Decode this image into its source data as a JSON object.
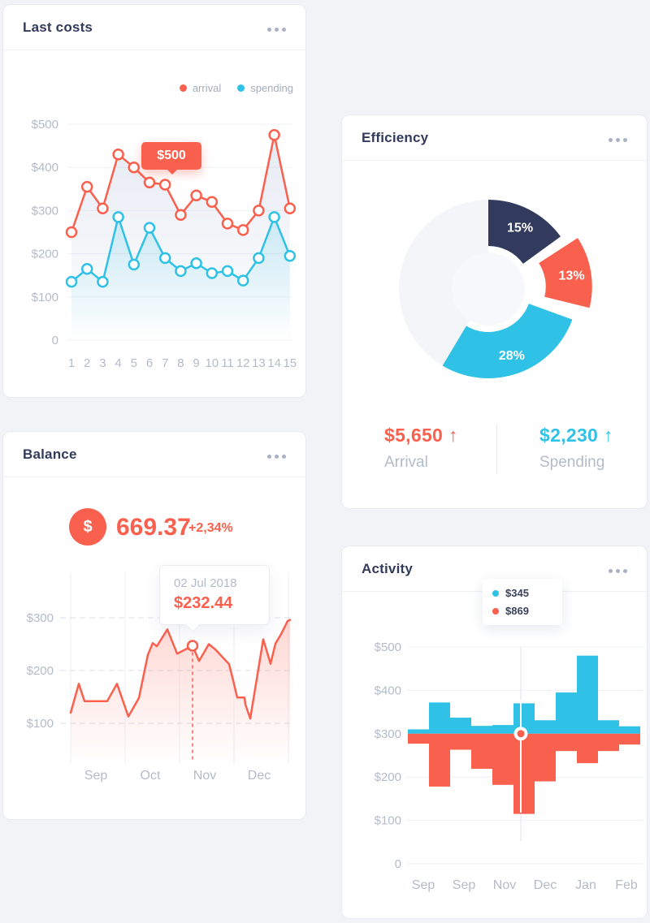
{
  "colors": {
    "page_bg": "#f1f3f7",
    "accent_red": "#f9604e",
    "accent_cyan": "#30c1e6",
    "navy": "#323b5e",
    "title_text": "#333b5d",
    "gray_text": "#b4bbc8",
    "donut_remainder": "#f4f5f9"
  },
  "icons": {
    "more_menu": "ellipsis",
    "up_arrow": "↑",
    "dollar_badge": "$"
  },
  "cards": {
    "last_costs": {
      "title": "Last costs"
    },
    "efficiency": {
      "title": "Efficiency"
    },
    "balance": {
      "title": "Balance"
    },
    "activity": {
      "title": "Activity"
    }
  },
  "chart_data": [
    {
      "id": "last-costs",
      "type": "line",
      "categories": [
        "1",
        "2",
        "3",
        "4",
        "5",
        "6",
        "7",
        "8",
        "9",
        "10",
        "11",
        "12",
        "13",
        "14",
        "15"
      ],
      "series": [
        {
          "name": "arrival",
          "color": "#f9604e",
          "values": [
            250,
            355,
            305,
            430,
            400,
            365,
            360,
            290,
            335,
            320,
            270,
            255,
            300,
            475,
            305
          ]
        },
        {
          "name": "spending",
          "color": "#30c1e6",
          "values": [
            135,
            165,
            135,
            285,
            175,
            260,
            190,
            160,
            178,
            155,
            160,
            138,
            190,
            285,
            195
          ]
        }
      ],
      "ylim": [
        0,
        500
      ],
      "y_tick_labels": [
        "$500",
        "$400",
        "$300",
        "$200",
        "$100",
        "0"
      ],
      "grid": true,
      "legend_position": "top-right",
      "tooltip": {
        "label": "$500"
      }
    },
    {
      "id": "efficiency",
      "type": "pie",
      "donut": true,
      "segments": [
        {
          "label": "15%",
          "pct": 15,
          "color": "#323b5e",
          "exploded": false
        },
        {
          "label": "13%",
          "pct": 13,
          "color": "#f9604e",
          "exploded": true
        },
        {
          "label": "28%",
          "pct": 28,
          "color": "#30c1e6",
          "exploded": false
        }
      ],
      "remainder_color": "#f4f5f9",
      "stats": [
        {
          "value": "$5,650",
          "arrow": "↑",
          "label": "Arrival",
          "color": "#f9604e"
        },
        {
          "value": "$2,230",
          "arrow": "↑",
          "label": "Spending",
          "color": "#30c1e6"
        }
      ]
    },
    {
      "id": "balance",
      "type": "area",
      "header": {
        "badge": "$",
        "value": "669.37",
        "change": "+2,34%"
      },
      "line_color": "#f9604e",
      "x_tick_labels": [
        "Sep",
        "Oct",
        "Nov",
        "Dec"
      ],
      "y_tick_labels": [
        "$300",
        "$200",
        "$100"
      ],
      "ylim": [
        100,
        300
      ],
      "points": [
        [
          0,
          120
        ],
        [
          10,
          175
        ],
        [
          17,
          142
        ],
        [
          45,
          142
        ],
        [
          57,
          175
        ],
        [
          71,
          113
        ],
        [
          84,
          148
        ],
        [
          95,
          230
        ],
        [
          101,
          252
        ],
        [
          106,
          246
        ],
        [
          119,
          278
        ],
        [
          131,
          232
        ],
        [
          150,
          247
        ],
        [
          158,
          218
        ],
        [
          170,
          250
        ],
        [
          178,
          240
        ],
        [
          195,
          212
        ],
        [
          200,
          181
        ],
        [
          205,
          149
        ],
        [
          214,
          149
        ],
        [
          215,
          136
        ],
        [
          221,
          109
        ],
        [
          237,
          259
        ],
        [
          246,
          213
        ],
        [
          252,
          251
        ],
        [
          259,
          269
        ],
        [
          267,
          294
        ],
        [
          270,
          296
        ]
      ],
      "marker": {
        "x": 150,
        "value": 247
      },
      "tooltip": {
        "date": "02 Jul 2018",
        "value": "$232.44"
      }
    },
    {
      "id": "activity",
      "type": "bar",
      "x_tick_labels": [
        "Sep",
        "Sep",
        "Nov",
        "Dec",
        "Jan",
        "Feb"
      ],
      "y_tick_labels": [
        "$500",
        "$400",
        "$300",
        "$200",
        "$100",
        "0"
      ],
      "ylim": [
        0,
        500
      ],
      "baseline": 300,
      "legend": [
        {
          "label": "$345",
          "color": "#30c1e6"
        },
        {
          "label": "$869",
          "color": "#f9604e"
        }
      ],
      "series": [
        {
          "name": "above-baseline",
          "color": "#30c1e6",
          "values": [
            310,
            372,
            337,
            318,
            320,
            370,
            331,
            395,
            480,
            331,
            317
          ]
        },
        {
          "name": "below-baseline",
          "color": "#f9604e",
          "values": [
            277,
            178,
            263,
            219,
            182,
            115,
            190,
            260,
            232,
            260,
            275
          ]
        }
      ],
      "marker": {
        "column": 6,
        "value": 300
      }
    }
  ]
}
